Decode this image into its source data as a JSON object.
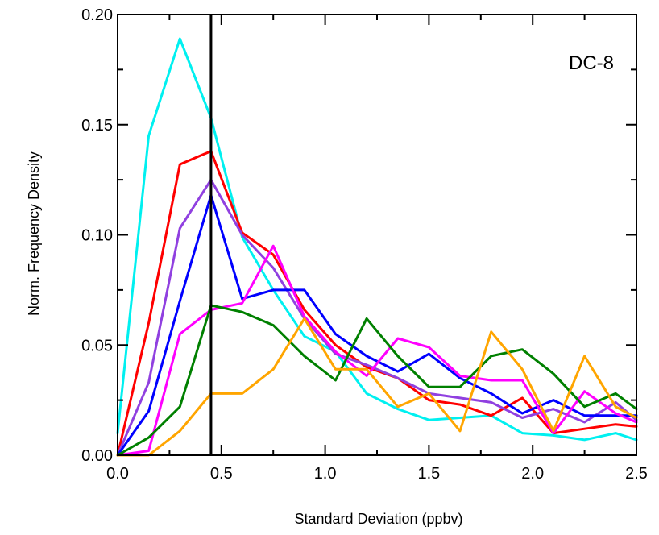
{
  "chart_data": {
    "type": "line",
    "title": "",
    "xlabel": "Standard Deviation (ppbv)",
    "ylabel": "Norm. Frequency Density",
    "annotation": "DC-8",
    "xlim": [
      0,
      2.5
    ],
    "ylim": [
      0,
      0.2
    ],
    "xticks": [
      0.0,
      0.5,
      1.0,
      1.5,
      2.0,
      2.5
    ],
    "xtick_labels": [
      "0.0",
      "0.5",
      "1.0",
      "1.5",
      "2.0",
      "2.5"
    ],
    "yticks": [
      0.0,
      0.05,
      0.1,
      0.15,
      0.2
    ],
    "ytick_labels": [
      "0.00",
      "0.05",
      "0.10",
      "0.15",
      "0.20"
    ],
    "vertical_line_x": 0.45,
    "grid": false,
    "x": [
      0.0,
      0.15,
      0.3,
      0.45,
      0.6,
      0.75,
      0.9,
      1.05,
      1.2,
      1.35,
      1.5,
      1.65,
      1.8,
      1.95,
      2.1,
      2.25,
      2.4,
      2.5
    ],
    "series": [
      {
        "color": "#00f0f0",
        "values": [
          0.01,
          0.145,
          0.189,
          0.153,
          0.099,
          0.075,
          0.054,
          0.047,
          0.028,
          0.021,
          0.016,
          0.017,
          0.018,
          0.01,
          0.009,
          0.007,
          0.01,
          0.007
        ]
      },
      {
        "color": "#ff0000",
        "values": [
          0.0,
          0.06,
          0.132,
          0.138,
          0.101,
          0.091,
          0.066,
          0.05,
          0.04,
          0.035,
          0.025,
          0.023,
          0.018,
          0.026,
          0.01,
          0.012,
          0.014,
          0.013
        ]
      },
      {
        "color": "#9040e0",
        "values": [
          0.0,
          0.033,
          0.103,
          0.125,
          0.1,
          0.085,
          0.062,
          0.046,
          0.041,
          0.035,
          0.028,
          0.026,
          0.024,
          0.017,
          0.021,
          0.015,
          0.024,
          0.016
        ]
      },
      {
        "color": "#0000ff",
        "values": [
          0.0,
          0.02,
          0.07,
          0.118,
          0.071,
          0.075,
          0.075,
          0.055,
          0.045,
          0.038,
          0.046,
          0.035,
          0.028,
          0.019,
          0.025,
          0.018,
          0.018,
          0.018
        ]
      },
      {
        "color": "#ff00ff",
        "values": [
          0.0,
          0.002,
          0.055,
          0.066,
          0.069,
          0.095,
          0.063,
          0.047,
          0.036,
          0.053,
          0.049,
          0.036,
          0.034,
          0.034,
          0.01,
          0.029,
          0.019,
          0.015
        ]
      },
      {
        "color": "#008000",
        "values": [
          0.0,
          0.008,
          0.022,
          0.068,
          0.065,
          0.059,
          0.045,
          0.034,
          0.062,
          0.045,
          0.031,
          0.031,
          0.045,
          0.048,
          0.037,
          0.022,
          0.028,
          0.021
        ]
      },
      {
        "color": "#ffa500",
        "values": [
          0.0,
          0.0,
          0.011,
          0.028,
          0.028,
          0.039,
          0.062,
          0.039,
          0.039,
          0.022,
          0.028,
          0.011,
          0.056,
          0.039,
          0.011,
          0.045,
          0.022,
          0.017
        ]
      }
    ]
  }
}
